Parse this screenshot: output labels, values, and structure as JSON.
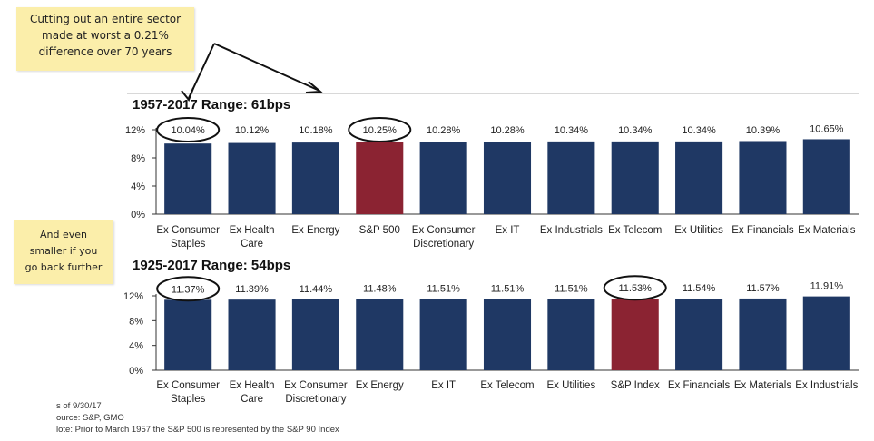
{
  "notes": {
    "top": [
      "Cutting out an entire sector",
      "made at worst a 0.21%",
      "difference over 70 years"
    ],
    "side": [
      "And even",
      "smaller if you",
      "go back further"
    ]
  },
  "footnotes": [
    "s of 9/30/17",
    "ource: S&P, GMO",
    "lote: Prior to March 1957 the S&P 500 is represented by the S&P 90 Index"
  ],
  "colors": {
    "bar": "#1f3864",
    "highlight": "#8b2332",
    "axis": "#333333"
  },
  "chart_data": [
    {
      "type": "bar",
      "title": "1957-2017 Range: 61bps",
      "categories": [
        [
          "Ex Consumer",
          "Staples"
        ],
        [
          "Ex Health",
          "Care"
        ],
        [
          "Ex Energy"
        ],
        [
          "S&P 500"
        ],
        [
          "Ex Consumer",
          "Discretionary"
        ],
        [
          "Ex IT"
        ],
        [
          "Ex Industrials"
        ],
        [
          "Ex Telecom"
        ],
        [
          "Ex Utilities"
        ],
        [
          "Ex Financials"
        ],
        [
          "Ex Materials"
        ]
      ],
      "values": [
        10.04,
        10.12,
        10.18,
        10.25,
        10.28,
        10.28,
        10.34,
        10.34,
        10.34,
        10.39,
        10.65
      ],
      "labels": [
        "10.04%",
        "10.12%",
        "10.18%",
        "10.25%",
        "10.28%",
        "10.28%",
        "10.34%",
        "10.34%",
        "10.34%",
        "10.39%",
        "10.65%"
      ],
      "highlight_index": 3,
      "circled": [
        0,
        3
      ],
      "yticks": [
        "0%",
        "4%",
        "8%",
        "12%"
      ],
      "ylim": [
        0,
        12
      ]
    },
    {
      "type": "bar",
      "title": "1925-2017 Range: 54bps",
      "categories": [
        [
          "Ex Consumer",
          "Staples"
        ],
        [
          "Ex Health",
          "Care"
        ],
        [
          "Ex Consumer",
          "Discretionary"
        ],
        [
          "Ex Energy"
        ],
        [
          "Ex IT"
        ],
        [
          "Ex Telecom"
        ],
        [
          "Ex Utilities"
        ],
        [
          "S&P Index"
        ],
        [
          "Ex Financials"
        ],
        [
          "Ex Materials"
        ],
        [
          "Ex Industrials"
        ]
      ],
      "values": [
        11.37,
        11.39,
        11.44,
        11.48,
        11.51,
        11.51,
        11.51,
        11.53,
        11.54,
        11.57,
        11.91
      ],
      "labels": [
        "11.37%",
        "11.39%",
        "11.44%",
        "11.48%",
        "11.51%",
        "11.51%",
        "11.51%",
        "11.53%",
        "11.54%",
        "11.57%",
        "11.91%"
      ],
      "highlight_index": 7,
      "circled": [
        0,
        7
      ],
      "yticks": [
        "0%",
        "4%",
        "8%",
        "12%"
      ],
      "ylim": [
        0,
        12
      ]
    }
  ]
}
